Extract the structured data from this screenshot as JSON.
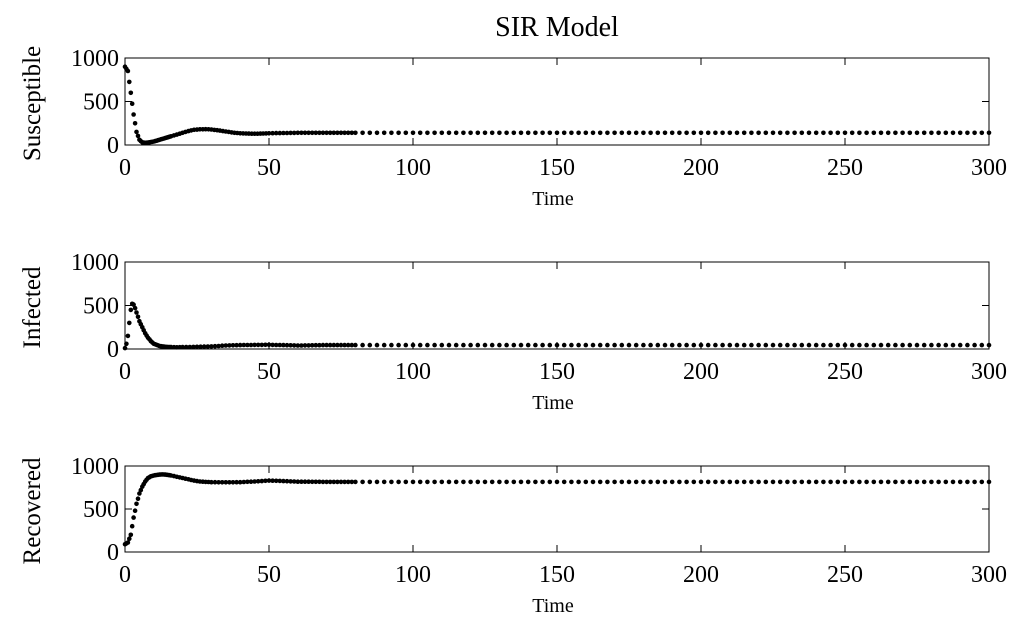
{
  "title": "SIR Model",
  "chart_data": [
    {
      "type": "scatter",
      "ylabel": "Susceptible",
      "xlabel": "Time",
      "xlim": [
        0,
        300
      ],
      "ylim": [
        0,
        1000
      ],
      "xticks": [
        "0",
        "50",
        "100",
        "150",
        "200",
        "250",
        "300"
      ],
      "yticks": [
        "0",
        "500",
        "1000"
      ],
      "grid": false,
      "series": [
        {
          "x": [
            0,
            1,
            2,
            3,
            4,
            5,
            6,
            7,
            8,
            10,
            12,
            14,
            16,
            18,
            20,
            22,
            24,
            26,
            28,
            30,
            32,
            34,
            36,
            38,
            40,
            42,
            44,
            46,
            48,
            50,
            55,
            60,
            70,
            80,
            90,
            100,
            150,
            200,
            250,
            300
          ],
          "y": [
            900,
            850,
            600,
            350,
            150,
            60,
            30,
            25,
            28,
            40,
            60,
            80,
            100,
            120,
            140,
            160,
            175,
            180,
            182,
            178,
            170,
            160,
            150,
            140,
            135,
            132,
            130,
            130,
            132,
            135,
            138,
            140,
            140,
            140,
            140,
            140,
            140,
            140,
            140,
            140
          ]
        }
      ]
    },
    {
      "type": "scatter",
      "ylabel": "Infected",
      "xlabel": "Time",
      "xlim": [
        0,
        300
      ],
      "ylim": [
        0,
        1000
      ],
      "xticks": [
        "0",
        "50",
        "100",
        "150",
        "200",
        "250",
        "300"
      ],
      "yticks": [
        "0",
        "500",
        "1000"
      ],
      "grid": false,
      "series": [
        {
          "x": [
            0,
            0.5,
            1,
            1.5,
            2,
            2.5,
            3,
            3.5,
            4,
            4.5,
            5,
            6,
            7,
            8,
            9,
            10,
            12,
            14,
            16,
            18,
            20,
            25,
            30,
            35,
            40,
            45,
            50,
            55,
            60,
            70,
            80,
            90,
            100,
            150,
            200,
            250,
            300
          ],
          "y": [
            10,
            60,
            150,
            300,
            450,
            520,
            510,
            470,
            420,
            370,
            320,
            250,
            180,
            130,
            90,
            60,
            35,
            25,
            22,
            20,
            22,
            25,
            30,
            40,
            45,
            47,
            48,
            45,
            40,
            45,
            45,
            45,
            45,
            45,
            45,
            45,
            45
          ]
        }
      ]
    },
    {
      "type": "scatter",
      "ylabel": "Recovered",
      "xlabel": "Time",
      "xlim": [
        0,
        300
      ],
      "ylim": [
        0,
        1000
      ],
      "xticks": [
        "0",
        "50",
        "100",
        "150",
        "200",
        "250",
        "300"
      ],
      "yticks": [
        "0",
        "500",
        "1000"
      ],
      "grid": false,
      "series": [
        {
          "x": [
            0,
            1,
            2,
            3,
            4,
            5,
            6,
            7,
            8,
            9,
            10,
            11,
            12,
            13,
            14,
            16,
            18,
            20,
            22,
            24,
            26,
            28,
            30,
            35,
            40,
            45,
            50,
            55,
            60,
            70,
            80,
            90,
            100,
            150,
            200,
            250,
            300
          ],
          "y": [
            90,
            110,
            200,
            400,
            560,
            680,
            760,
            820,
            860,
            880,
            890,
            895,
            900,
            902,
            900,
            890,
            875,
            860,
            845,
            830,
            820,
            815,
            812,
            810,
            812,
            820,
            830,
            825,
            818,
            815,
            815,
            815,
            815,
            815,
            815,
            815,
            815
          ]
        }
      ]
    }
  ]
}
